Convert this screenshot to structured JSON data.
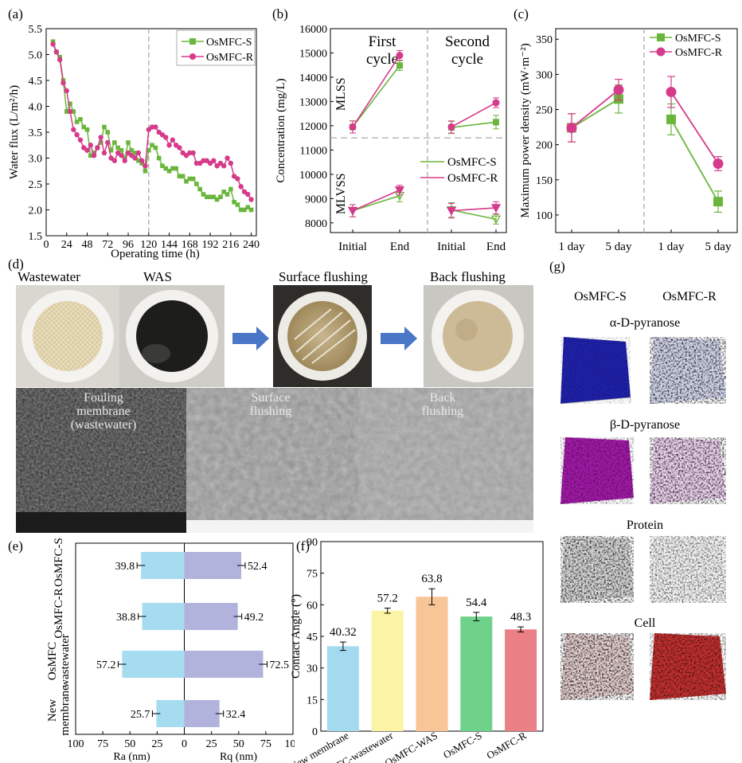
{
  "panel_labels": {
    "a": "(a)",
    "b": "(b)",
    "c": "(c)",
    "d": "(d)",
    "e": "(e)",
    "f": "(f)",
    "g": "(g)"
  },
  "colors": {
    "green": "#6ab63c",
    "pink": "#d63a8a",
    "cyan_bar": "#a6dcef",
    "purple_bar": "#b1b3dd"
  },
  "chart_data": [
    {
      "id": "a",
      "type": "line",
      "xlabel": "Operating time (h)",
      "ylabel": "Water flux (L/m²/h)",
      "xlim": [
        0,
        246
      ],
      "ylim": [
        1.5,
        5.5
      ],
      "xticks": [
        0,
        24,
        48,
        72,
        96,
        120,
        144,
        168,
        192,
        216,
        240
      ],
      "yticks": [
        1.5,
        2.0,
        2.5,
        3.0,
        3.5,
        4.0,
        4.5,
        5.0,
        5.5
      ],
      "divider_x": 120,
      "legend_position": "top-right",
      "series": [
        {
          "name": "OsMFC-S",
          "marker": "square",
          "x": [
            8,
            12,
            16,
            20,
            24,
            28,
            32,
            36,
            40,
            44,
            48,
            52,
            56,
            60,
            64,
            68,
            72,
            76,
            80,
            84,
            88,
            92,
            96,
            100,
            104,
            108,
            112,
            116,
            120,
            124,
            128,
            132,
            136,
            140,
            144,
            148,
            152,
            156,
            160,
            164,
            168,
            172,
            176,
            180,
            184,
            188,
            192,
            196,
            200,
            204,
            208,
            212,
            216,
            220,
            224,
            228,
            232,
            236,
            240
          ],
          "y": [
            5.25,
            5.05,
            4.95,
            4.5,
            3.9,
            4.05,
            3.9,
            3.7,
            3.75,
            3.6,
            3.55,
            3.05,
            3.1,
            3.2,
            3.3,
            3.6,
            3.5,
            3.15,
            3.3,
            3.2,
            3.15,
            3.0,
            3.3,
            3.15,
            3.1,
            2.95,
            2.9,
            2.75,
            3.15,
            3.25,
            3.2,
            3.0,
            2.85,
            2.8,
            2.75,
            2.8,
            2.8,
            2.65,
            2.65,
            2.55,
            2.6,
            2.6,
            2.5,
            2.4,
            2.3,
            2.25,
            2.25,
            2.25,
            2.2,
            2.25,
            2.35,
            2.3,
            2.4,
            2.15,
            2.1,
            2.0,
            2.0,
            2.05,
            2.0
          ]
        },
        {
          "name": "OsMFC-R",
          "marker": "circle",
          "x": [
            8,
            12,
            16,
            20,
            24,
            28,
            32,
            36,
            40,
            44,
            48,
            52,
            56,
            60,
            64,
            68,
            72,
            76,
            80,
            84,
            88,
            92,
            96,
            100,
            104,
            108,
            112,
            116,
            120,
            124,
            128,
            132,
            136,
            140,
            144,
            148,
            152,
            156,
            160,
            164,
            168,
            172,
            176,
            180,
            184,
            188,
            192,
            196,
            200,
            204,
            208,
            212,
            216,
            220,
            224,
            228,
            232,
            236,
            240
          ],
          "y": [
            5.2,
            5.05,
            4.9,
            4.45,
            4.3,
            3.9,
            3.55,
            3.45,
            3.35,
            3.2,
            3.15,
            3.25,
            3.05,
            3.2,
            3.4,
            3.1,
            3.3,
            3.0,
            2.95,
            3.1,
            3.05,
            2.95,
            3.1,
            3.05,
            3.0,
            3.1,
            2.95,
            2.85,
            3.55,
            3.6,
            3.6,
            3.5,
            3.45,
            3.4,
            3.25,
            3.35,
            3.25,
            3.2,
            3.1,
            3.05,
            3.1,
            3.1,
            2.9,
            2.9,
            2.95,
            2.95,
            2.9,
            2.95,
            2.85,
            2.9,
            2.85,
            3.0,
            2.9,
            2.65,
            2.6,
            2.45,
            2.35,
            2.3,
            2.2
          ]
        }
      ]
    },
    {
      "id": "b",
      "type": "line",
      "ylabel": "Concentration (mg/L)",
      "yticks": [
        8000,
        9000,
        10000,
        11000,
        12000,
        13000,
        14000,
        15000,
        16000
      ],
      "ylim": [
        7600,
        16000
      ],
      "categories": [
        "Initial",
        "End",
        "Initial",
        "End"
      ],
      "cycle_labels": [
        "First\ncycle",
        "Second\ncycle"
      ],
      "region_labels": [
        "MLSS",
        "MLVSS"
      ],
      "divider_y": 11500,
      "legend_position": "center-right",
      "series": [
        {
          "name": "OsMFC-S",
          "group": "MLSS",
          "values": [
            11950,
            14480,
            11930,
            12150
          ],
          "errors": [
            250,
            200,
            250,
            280
          ]
        },
        {
          "name": "OsMFC-R",
          "group": "MLSS",
          "values": [
            11950,
            14900,
            11950,
            12950
          ],
          "errors": [
            250,
            200,
            250,
            200
          ]
        },
        {
          "name": "OsMFC-S",
          "group": "MLVSS",
          "values": [
            8500,
            9120,
            8530,
            8150
          ],
          "errors": [
            250,
            250,
            300,
            200
          ]
        },
        {
          "name": "OsMFC-R",
          "group": "MLVSS",
          "values": [
            8500,
            9350,
            8500,
            8620
          ],
          "errors": [
            250,
            200,
            300,
            250
          ]
        }
      ]
    },
    {
      "id": "c",
      "type": "line",
      "ylabel": "Maximum power density (mW·m⁻²)",
      "ylim": [
        75,
        365
      ],
      "yticks": [
        100,
        150,
        200,
        250,
        300,
        350
      ],
      "categories": [
        "1 day",
        "5 day",
        "1 day",
        "5 day"
      ],
      "legend_position": "top-right",
      "series": [
        {
          "name": "OsMFC-S",
          "marker": "square",
          "values": [
            224,
            265,
            236,
            119
          ],
          "errors": [
            20,
            20,
            22,
            15
          ]
        },
        {
          "name": "OsMFC-R",
          "marker": "circle",
          "values": [
            224,
            278,
            275,
            173
          ],
          "errors": [
            20,
            15,
            22,
            10
          ]
        }
      ]
    },
    {
      "id": "e",
      "type": "bar",
      "orientation": "horizontal",
      "categories": [
        "OsMFC-S",
        "OsMFC-R",
        "OsMFC\nwastewater",
        "New\nmembrane"
      ],
      "xticks_left": [
        100,
        75,
        50,
        25,
        0
      ],
      "xticks_right": [
        25,
        50,
        75,
        100
      ],
      "xlabel_left": "Ra (nm)",
      "xlabel_right": "Rq (nm)",
      "series": [
        {
          "name": "Ra",
          "values": [
            39.8,
            38.8,
            57.2,
            25.7
          ],
          "labels": [
            "39.8",
            "38.8",
            "57.2",
            "25.7"
          ]
        },
        {
          "name": "Rq",
          "values": [
            52.4,
            49.2,
            72.5,
            32.4
          ],
          "labels": [
            "52.4",
            "49.2",
            "72.5",
            "32.4"
          ]
        }
      ]
    },
    {
      "id": "f",
      "type": "bar",
      "ylabel": "Contact Angle (°)",
      "ylim": [
        0,
        90
      ],
      "yticks": [
        0,
        15,
        30,
        45,
        60,
        75,
        90
      ],
      "categories": [
        "New membrane",
        "OsMFC-wastewater",
        "OsMFC-WAS",
        "OsMFC-S",
        "OsMFC-R"
      ],
      "values": [
        40.32,
        57.2,
        63.8,
        54.4,
        48.3
      ],
      "labels": [
        "40.32",
        "57.2",
        "63.8",
        "54.4",
        "48.3"
      ],
      "errors": [
        2.0,
        1.2,
        3.8,
        2.0,
        1.2
      ],
      "bar_colors": [
        "#a4daef",
        "#fbf4a4",
        "#f8c596",
        "#6fd28a",
        "#eb7f86"
      ]
    }
  ],
  "panel_d": {
    "photo_labels": [
      "Wastewater",
      "WAS",
      "Surface flushing",
      "Back flushing"
    ],
    "sem_labels": [
      "Fouling\nmembrane\n(wastewater)",
      "Surface\nflushing",
      "Back\nflushing"
    ]
  },
  "panel_g": {
    "columns": [
      "OsMFC-S",
      "OsMFC-R"
    ],
    "rows": [
      "α-D-pyranose",
      "β-D-pyranose",
      "Protein",
      "Cell"
    ]
  }
}
